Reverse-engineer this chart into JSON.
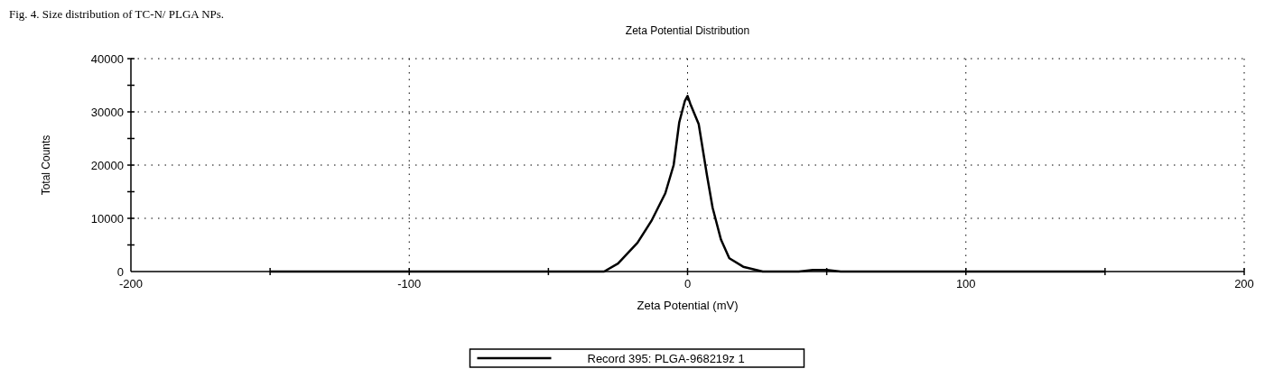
{
  "chart_data": {
    "type": "line",
    "title": "Zeta Potential Distribution",
    "xlabel": "Zeta Potential (mV)",
    "ylabel": "Total Counts",
    "annotations": [
      "Fig. 4. Size distribution of TC-N/ PLGA NPs."
    ],
    "xlim": [
      -200,
      200
    ],
    "xticks": [
      -200,
      {
        "value": -150,
        "label": null
      },
      -100,
      {
        "value": -50,
        "label": null
      },
      0,
      {
        "value": 50,
        "label": null
      },
      100,
      {
        "value": 150,
        "label": null
      },
      200
    ],
    "ylim": [
      0,
      40000
    ],
    "yticks": [
      0,
      {
        "value": 5000,
        "label": null
      },
      10000,
      {
        "value": 15000,
        "label": null
      },
      20000,
      {
        "value": 25000,
        "label": null
      },
      30000,
      {
        "value": 35000,
        "label": null
      },
      40000
    ],
    "grid": true,
    "legend": "bottom",
    "marker": "none",
    "line_style": "solid",
    "series": [
      {
        "name": "Record 395: PLGA-968219z 1",
        "color": "#000000",
        "x": [
          -150,
          -30,
          -25,
          -18,
          -13,
          -8,
          -5,
          -3,
          -1,
          0,
          1,
          4,
          7,
          9,
          12,
          15,
          20,
          27,
          40,
          45,
          50,
          55,
          150
        ],
        "values": [
          0,
          0,
          1500,
          5400,
          9500,
          14700,
          20000,
          28000,
          32000,
          33000,
          31500,
          27700,
          18000,
          12000,
          6000,
          2500,
          900,
          0,
          0,
          300,
          300,
          0,
          0
        ]
      }
    ]
  }
}
